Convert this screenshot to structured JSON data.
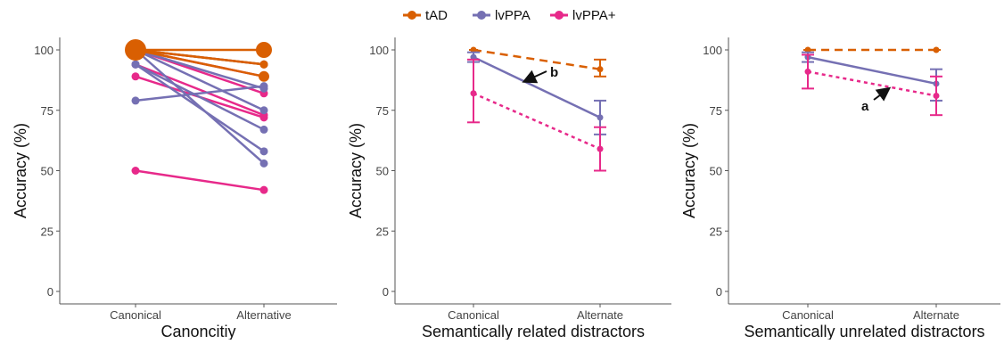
{
  "legend": [
    {
      "name": "tAD",
      "color": "#d95f02"
    },
    {
      "name": "lvPPA",
      "color": "#7570b3"
    },
    {
      "name": "lvPPA+",
      "color": "#e7298a"
    }
  ],
  "chart_data": [
    {
      "type": "line",
      "panel": "individual",
      "xlabel": "Canoncitiy",
      "ylabel": "Accuracy (%)",
      "categories": [
        "Canonical",
        "Alternative"
      ],
      "ylim": [
        0,
        100
      ],
      "yticks": [
        0,
        25,
        50,
        75,
        100
      ],
      "series": [
        {
          "group": "tAD",
          "values": [
            100,
            100
          ]
        },
        {
          "group": "tAD",
          "values": [
            100,
            94
          ]
        },
        {
          "group": "tAD",
          "values": [
            100,
            89
          ]
        },
        {
          "group": "tAD",
          "values": [
            100,
            94
          ]
        },
        {
          "group": "lvPPA",
          "values": [
            100,
            94
          ]
        },
        {
          "group": "lvPPA",
          "values": [
            100,
            84
          ]
        },
        {
          "group": "lvPPA",
          "values": [
            100,
            75
          ]
        },
        {
          "group": "lvPPA",
          "values": [
            94,
            67
          ]
        },
        {
          "group": "lvPPA",
          "values": [
            94,
            58
          ]
        },
        {
          "group": "lvPPA",
          "values": [
            100,
            53
          ]
        },
        {
          "group": "lvPPA",
          "values": [
            79,
            85
          ]
        },
        {
          "group": "lvPPA+",
          "values": [
            100,
            89
          ]
        },
        {
          "group": "lvPPA+",
          "values": [
            100,
            82
          ]
        },
        {
          "group": "lvPPA+",
          "values": [
            94,
            73
          ]
        },
        {
          "group": "lvPPA+",
          "values": [
            89,
            72
          ]
        },
        {
          "group": "lvPPA+",
          "values": [
            50,
            42
          ]
        }
      ],
      "large_points": [
        {
          "group": "tAD",
          "x": "Canonical",
          "y": 100
        },
        {
          "group": "tAD",
          "x": "Alternative",
          "y": 100
        },
        {
          "group": "tAD",
          "x": "Alternative",
          "y": 89
        }
      ]
    },
    {
      "type": "line",
      "panel": "related",
      "xlabel": "Semantically related distractors",
      "ylabel": "Accuracy (%)",
      "categories": [
        "Canonical",
        "Alternate"
      ],
      "ylim": [
        0,
        100
      ],
      "yticks": [
        0,
        25,
        50,
        75,
        100
      ],
      "series": [
        {
          "group": "tAD",
          "values": [
            100,
            92
          ],
          "err_low": [
            100,
            89
          ],
          "err_high": [
            100,
            96
          ],
          "dash": "dashed"
        },
        {
          "group": "lvPPA",
          "values": [
            97,
            72
          ],
          "err_low": [
            95,
            65
          ],
          "err_high": [
            99,
            79
          ],
          "dash": "solid"
        },
        {
          "group": "lvPPA+",
          "values": [
            82,
            59
          ],
          "err_low": [
            70,
            50
          ],
          "err_high": [
            96,
            68
          ],
          "dash": "dotted"
        }
      ],
      "annotations": [
        {
          "text": "b"
        }
      ]
    },
    {
      "type": "line",
      "panel": "unrelated",
      "xlabel": "Semantically unrelated distractors",
      "ylabel": "Accuracy (%)",
      "categories": [
        "Canonical",
        "Alternate"
      ],
      "ylim": [
        0,
        100
      ],
      "yticks": [
        0,
        25,
        50,
        75,
        100
      ],
      "series": [
        {
          "group": "tAD",
          "values": [
            100,
            100
          ],
          "err_low": [
            100,
            100
          ],
          "err_high": [
            100,
            100
          ],
          "dash": "dashed"
        },
        {
          "group": "lvPPA",
          "values": [
            97,
            86
          ],
          "err_low": [
            95,
            79
          ],
          "err_high": [
            99,
            92
          ],
          "dash": "solid"
        },
        {
          "group": "lvPPA+",
          "values": [
            91,
            81
          ],
          "err_low": [
            84,
            73
          ],
          "err_high": [
            98,
            89
          ],
          "dash": "dotted"
        }
      ],
      "annotations": [
        {
          "text": "a"
        }
      ]
    }
  ]
}
